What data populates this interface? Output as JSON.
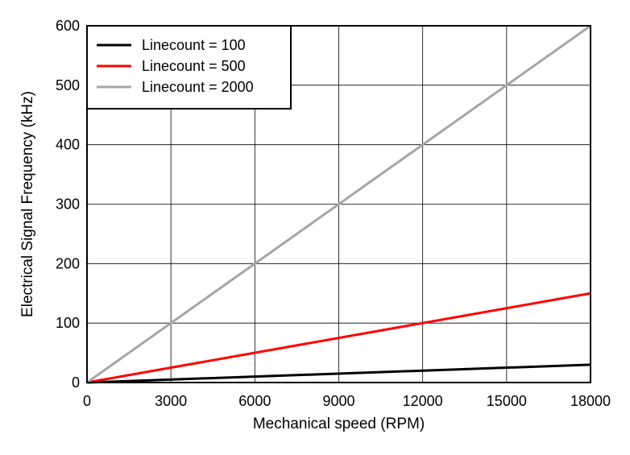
{
  "chart_data": {
    "type": "line",
    "title": "",
    "xlabel": "Mechanical speed (RPM)",
    "ylabel": "Electrical Signal Frequency (kHz)",
    "xlim": [
      0,
      18000
    ],
    "ylim": [
      0,
      600
    ],
    "xticks": [
      0,
      3000,
      6000,
      9000,
      12000,
      15000,
      18000
    ],
    "yticks": [
      0,
      100,
      200,
      300,
      400,
      500,
      600
    ],
    "grid": true,
    "legend_position": "top-left",
    "series": [
      {
        "name": "Linecount = 100",
        "color": "#000000",
        "x": [
          0,
          18000
        ],
        "y": [
          0,
          30
        ]
      },
      {
        "name": "Linecount = 500",
        "color": "#ff0000",
        "x": [
          0,
          18000
        ],
        "y": [
          0,
          150
        ]
      },
      {
        "name": "Linecount = 2000",
        "color": "#a6a6a6",
        "x": [
          0,
          18000
        ],
        "y": [
          0,
          600
        ]
      }
    ]
  }
}
